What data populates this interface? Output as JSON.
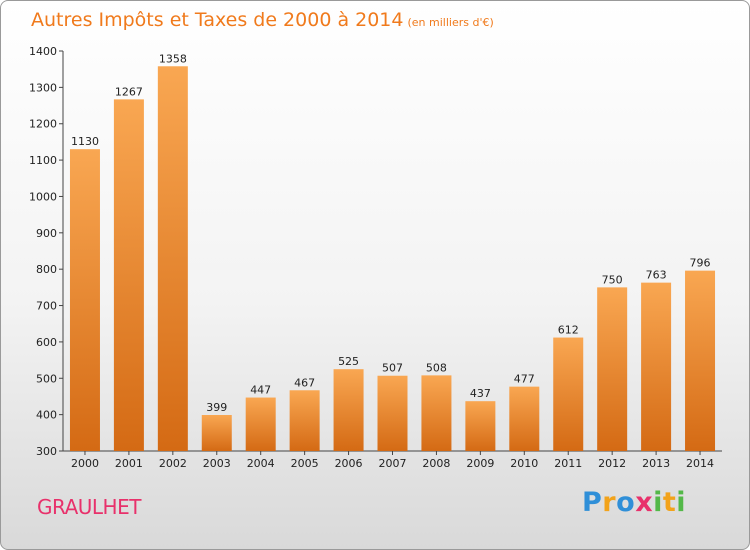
{
  "title": "Autres Impôts et Taxes de 2000 à 2014",
  "subtitle": "(en milliers d'€)",
  "city": "GRAULHET",
  "logo": [
    "P",
    "r",
    "o",
    "x",
    "i",
    "t",
    "i"
  ],
  "colors": {
    "bar_light": "#f9a752",
    "bar_dark": "#d46a14",
    "title": "#f07a1c",
    "city": "#e8316b",
    "logo": [
      "#2f8fd8",
      "#f2a31b",
      "#2f8fd8",
      "#e8316b",
      "#53b848",
      "#f2a31b",
      "#53b848"
    ]
  },
  "chart_data": {
    "type": "bar",
    "title": "Autres Impôts et Taxes de 2000 à 2014",
    "subtitle": "(en milliers d'€)",
    "categories": [
      "2000",
      "2001",
      "2002",
      "2003",
      "2004",
      "2005",
      "2006",
      "2007",
      "2008",
      "2009",
      "2010",
      "2011",
      "2012",
      "2013",
      "2014"
    ],
    "values": [
      1130,
      1267,
      1358,
      399,
      447,
      467,
      525,
      507,
      508,
      437,
      477,
      612,
      750,
      763,
      796
    ],
    "ylim": [
      300,
      1400
    ],
    "yticks": [
      300,
      400,
      500,
      600,
      700,
      800,
      900,
      1000,
      1100,
      1200,
      1300,
      1400
    ],
    "grid": false,
    "legend": "none"
  }
}
